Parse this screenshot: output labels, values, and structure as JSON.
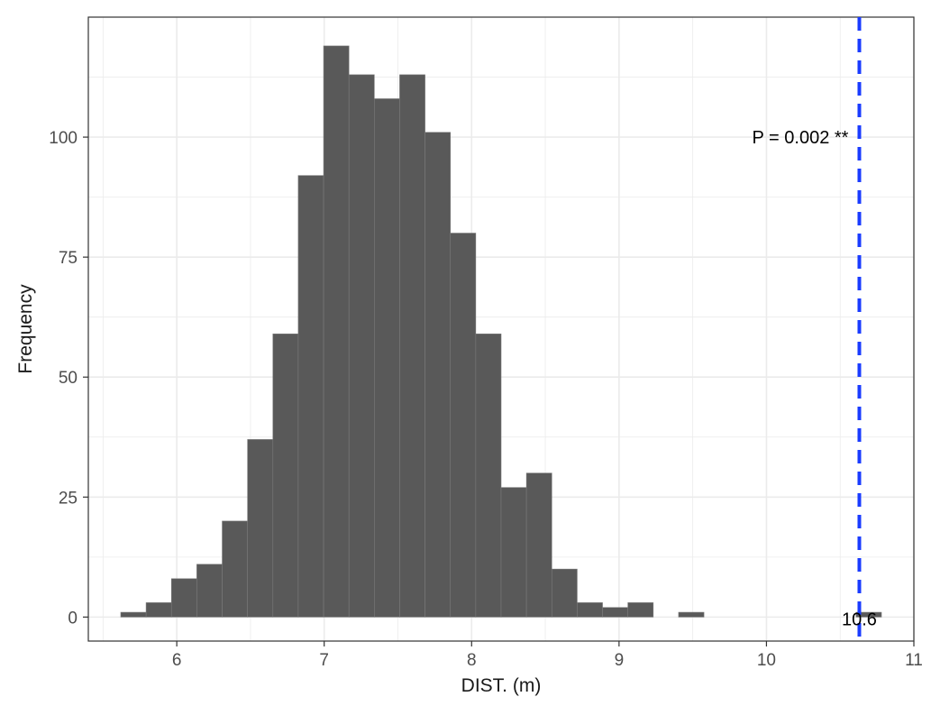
{
  "chart_data": {
    "type": "bar",
    "subtype": "histogram",
    "xlabel": "DIST. (m)",
    "ylabel": "Frequency",
    "xlim": [
      5.4,
      11.0
    ],
    "ylim": [
      -5,
      125
    ],
    "x_ticks": [
      6,
      7,
      8,
      9,
      10,
      11
    ],
    "y_ticks": [
      0,
      25,
      50,
      75,
      100
    ],
    "x_minor_ticks": [
      5.5,
      6.5,
      7.5,
      8.5,
      9.5,
      10.5
    ],
    "y_minor_ticks": [
      12.5,
      37.5,
      62.5,
      87.5,
      112.5
    ],
    "grid": true,
    "bin_width": 0.172,
    "bins_start": [
      5.62,
      5.792,
      5.964,
      6.136,
      6.308,
      6.48,
      6.652,
      6.824,
      6.996,
      7.168,
      7.34,
      7.512,
      7.684,
      7.856,
      8.028,
      8.2,
      8.372,
      8.544,
      8.716,
      8.888,
      9.06,
      9.232,
      9.404,
      9.576,
      9.748,
      9.92,
      10.092,
      10.264,
      10.436,
      10.608
    ],
    "counts": [
      1,
      3,
      8,
      11,
      20,
      37,
      59,
      92,
      119,
      113,
      108,
      113,
      101,
      80,
      59,
      27,
      30,
      10,
      3,
      2,
      3,
      0,
      1,
      0,
      0,
      0,
      0,
      0,
      0,
      1
    ],
    "colors": {
      "bar_fill": "#595959",
      "bar_edge": "#7a7a7a",
      "grid": "#ebebeb",
      "panel_border": "#333333",
      "vline": "#1a3cff"
    },
    "reference_line": {
      "x": 10.63,
      "style": "dashed",
      "color": "#1a3cff"
    },
    "annotations": {
      "p_value": "P =  0.002 **",
      "observed_value": "10.6"
    }
  }
}
